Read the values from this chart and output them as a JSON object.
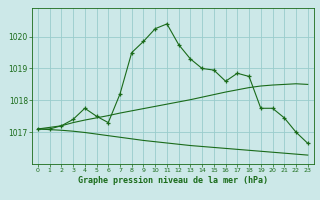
{
  "x": [
    0,
    1,
    2,
    3,
    4,
    5,
    6,
    7,
    8,
    9,
    10,
    11,
    12,
    13,
    14,
    15,
    16,
    17,
    18,
    19,
    20,
    21,
    22,
    23
  ],
  "main_line": [
    1017.1,
    1017.1,
    1017.2,
    1017.4,
    1017.75,
    1017.5,
    1017.3,
    1018.2,
    1019.5,
    1019.85,
    1020.25,
    1020.4,
    1019.75,
    1019.3,
    1019.0,
    1018.95,
    1018.6,
    1018.85,
    1018.75,
    1017.75,
    1017.75,
    1017.45,
    1017.0,
    1016.65
  ],
  "upper_smooth": [
    1017.1,
    1017.15,
    1017.2,
    1017.3,
    1017.38,
    1017.45,
    1017.52,
    1017.6,
    1017.67,
    1017.74,
    1017.81,
    1017.88,
    1017.95,
    1018.02,
    1018.1,
    1018.18,
    1018.26,
    1018.33,
    1018.4,
    1018.45,
    1018.48,
    1018.5,
    1018.52,
    1018.5
  ],
  "lower_smooth": [
    1017.1,
    1017.08,
    1017.06,
    1017.03,
    1016.99,
    1016.94,
    1016.89,
    1016.84,
    1016.79,
    1016.74,
    1016.7,
    1016.66,
    1016.62,
    1016.58,
    1016.55,
    1016.52,
    1016.49,
    1016.46,
    1016.43,
    1016.4,
    1016.37,
    1016.34,
    1016.31,
    1016.28
  ],
  "line_color": "#1a6b1a",
  "bg_color": "#cce8e8",
  "grid_color": "#99cccc",
  "xlabel": "Graphe pression niveau de la mer (hPa)",
  "yticks": [
    1017,
    1018,
    1019,
    1020
  ],
  "xticks": [
    0,
    1,
    2,
    3,
    4,
    5,
    6,
    7,
    8,
    9,
    10,
    11,
    12,
    13,
    14,
    15,
    16,
    17,
    18,
    19,
    20,
    21,
    22,
    23
  ],
  "ylim": [
    1016.0,
    1020.9
  ],
  "xlim": [
    -0.5,
    23.5
  ]
}
